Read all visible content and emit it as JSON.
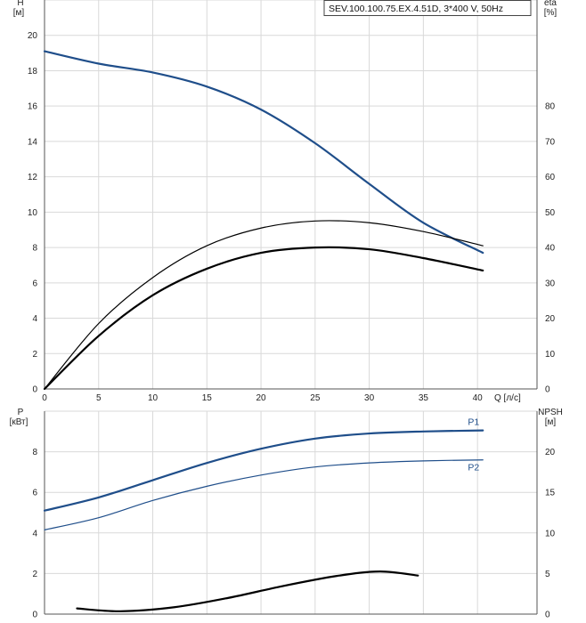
{
  "chart_data": [
    {
      "type": "line",
      "x": [
        0,
        5,
        10,
        15,
        20,
        25,
        30,
        35,
        40.5
      ],
      "xlabel": "Q [л/с]",
      "ylabel_left": "H\n[м]",
      "ylabel_right": "eta\n[%]",
      "xlim": [
        0,
        45.5
      ],
      "ylim_left": [
        0,
        22
      ],
      "ylim_right": [
        0,
        110
      ],
      "xticks": [
        0,
        5,
        10,
        15,
        20,
        25,
        30,
        35,
        40
      ],
      "yticks_left": [
        0,
        2,
        4,
        6,
        8,
        10,
        12,
        14,
        16,
        18,
        20
      ],
      "yticks_right": [
        0,
        10,
        20,
        30,
        40,
        50,
        60,
        70,
        80
      ],
      "legend_text": "SEV.100.100.75.EX.4.51D, 3*400 V, 50Hz",
      "grid": true,
      "series": [
        {
          "axis": "left",
          "color": "#1f4e8a",
          "width": 2.2,
          "values": [
            19.1,
            18.4,
            17.9,
            17.1,
            15.8,
            13.9,
            11.6,
            9.4,
            7.7
          ]
        },
        {
          "axis": "right",
          "color": "#000000",
          "width": 1.2,
          "values": [
            0,
            18.5,
            31.5,
            40.5,
            45.5,
            47.5,
            47,
            44.5,
            40.5
          ]
        },
        {
          "axis": "right",
          "color": "#000000",
          "width": 2.2,
          "values": [
            0,
            15,
            26.5,
            34,
            38.5,
            40,
            39.5,
            37,
            33.5
          ]
        }
      ]
    },
    {
      "type": "line",
      "x": [
        0,
        5,
        10,
        15,
        20,
        25,
        30,
        35,
        40.5
      ],
      "ylabel_left": "P\n[кВт]",
      "ylabel_right": "NPSH\n[м]",
      "xlim": [
        0,
        45.5
      ],
      "ylim_left": [
        0,
        10
      ],
      "ylim_right": [
        0,
        25
      ],
      "yticks_left": [
        0,
        2,
        4,
        6,
        8
      ],
      "yticks_right": [
        0,
        5,
        10,
        15,
        20
      ],
      "grid": true,
      "series": [
        {
          "name": "P1",
          "axis": "left",
          "color": "#1f4e8a",
          "width": 2.2,
          "values": [
            5.1,
            5.75,
            6.6,
            7.45,
            8.15,
            8.65,
            8.9,
            9.0,
            9.05
          ]
        },
        {
          "name": "P2",
          "axis": "left",
          "color": "#1f4e8a",
          "width": 1.2,
          "values": [
            4.15,
            4.75,
            5.6,
            6.3,
            6.85,
            7.25,
            7.45,
            7.55,
            7.6
          ]
        },
        {
          "axis": "right",
          "color": "#000000",
          "width": 2.2,
          "x": [
            3,
            7,
            12,
            17,
            22,
            27,
            31,
            34.5
          ],
          "values": [
            0.7,
            0.35,
            0.85,
            2.0,
            3.45,
            4.7,
            5.25,
            4.75
          ]
        }
      ]
    }
  ]
}
